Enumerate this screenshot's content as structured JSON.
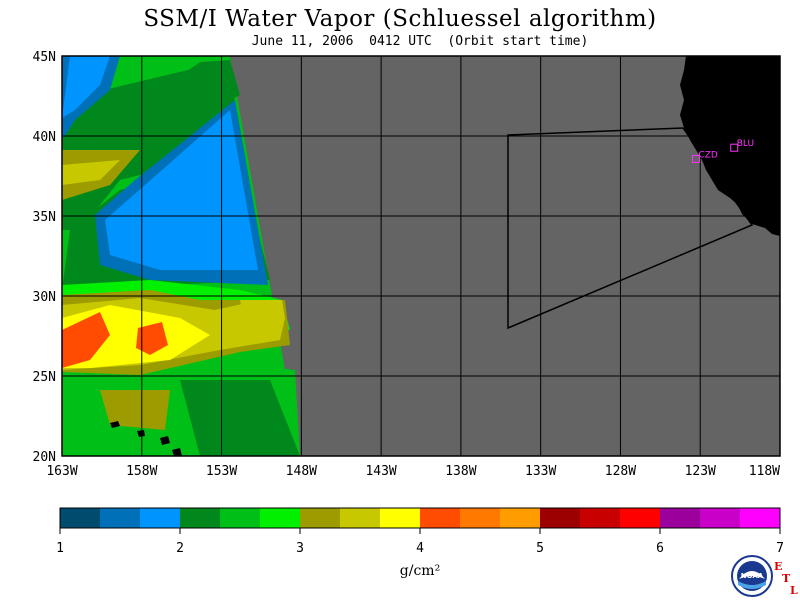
{
  "header": {
    "title": "SSM/I Water Vapor (Schluessel algorithm)",
    "subtitle": "June 11, 2006  0412 UTC  (Orbit start time)"
  },
  "map": {
    "region": "Northeast Pacific off California",
    "lon_range": [
      -163,
      -118
    ],
    "lat_range": [
      20,
      45
    ],
    "lat_ticks": [
      "45N",
      "40N",
      "35N",
      "30N",
      "25N",
      "20N"
    ],
    "lon_ticks": [
      "163W",
      "158W",
      "153W",
      "148W",
      "143W",
      "138W",
      "133W",
      "128W",
      "123W",
      "118W"
    ],
    "no_data_color": "#646464",
    "land_color": "#000000",
    "sites": [
      {
        "name": "CZD",
        "lon": -123.3,
        "lat": 38.6
      },
      {
        "name": "BLU",
        "lon": -120.9,
        "lat": 39.3
      }
    ]
  },
  "colorbar": {
    "tick_labels": [
      "1",
      "2",
      "3",
      "4",
      "5",
      "6",
      "7"
    ],
    "colors": [
      "#004c6e",
      "#0070b8",
      "#0094ff",
      "#00881c",
      "#00c018",
      "#00f000",
      "#9c9c00",
      "#c8c800",
      "#ffff00",
      "#ff4c00",
      "#ff7800",
      "#ff9c00",
      "#9c0000",
      "#c80000",
      "#ff0000",
      "#9c009c",
      "#c800c8",
      "#ff00ff"
    ],
    "unit": "g/cm²"
  },
  "logos": {
    "noaa": "NOAA",
    "etl": [
      "E",
      "T",
      "L"
    ]
  }
}
